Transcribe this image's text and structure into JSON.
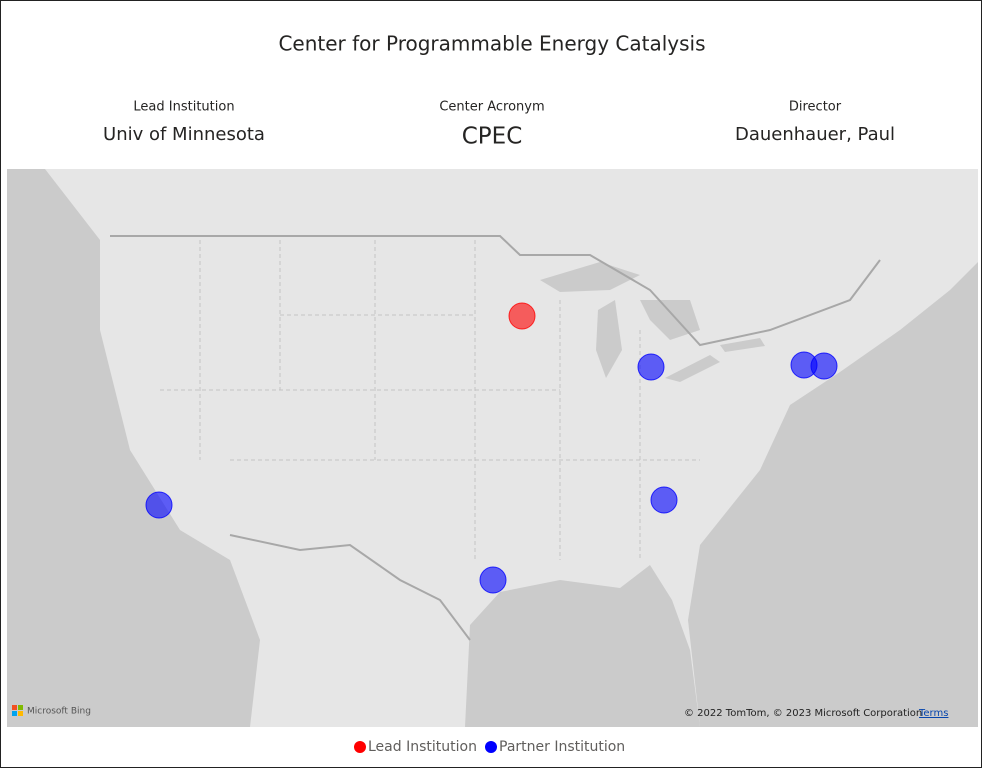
{
  "header": {
    "title": "Center for Programmable Energy Catalysis"
  },
  "cards": [
    {
      "label": "Lead Institution",
      "value": "Univ of Minnesota"
    },
    {
      "label": "Center Acronym",
      "value": "CPEC"
    },
    {
      "label": "Director",
      "value": "Dauenhauer, Paul"
    }
  ],
  "map": {
    "provider": "Microsoft Bing",
    "attribution": "© 2022 TomTom, © 2023 Microsoft Corporation",
    "terms": "Terms"
  },
  "legend": [
    {
      "name": "Lead Institution",
      "color": "#ff0000"
    },
    {
      "name": "Partner Institution",
      "color": "#0000ff"
    }
  ]
}
